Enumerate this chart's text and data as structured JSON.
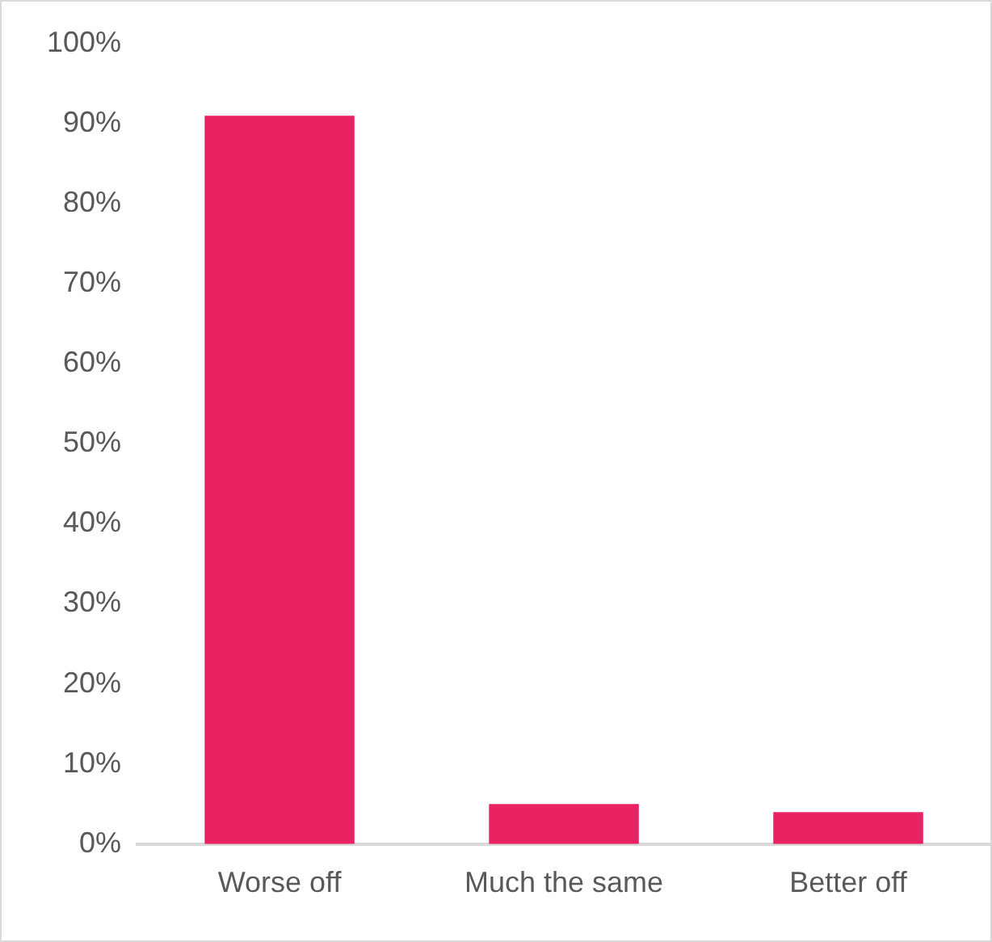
{
  "chart_data": {
    "type": "bar",
    "categories": [
      "Worse off",
      "Much the same",
      "Better off"
    ],
    "values": [
      91,
      5,
      4
    ],
    "color": "#e92262",
    "ylim": [
      0,
      100
    ],
    "yticks": [
      {
        "value": 0,
        "label": "0%"
      },
      {
        "value": 10,
        "label": "10%"
      },
      {
        "value": 20,
        "label": "20%"
      },
      {
        "value": 30,
        "label": "30%"
      },
      {
        "value": 40,
        "label": "40%"
      },
      {
        "value": 50,
        "label": "50%"
      },
      {
        "value": 60,
        "label": "60%"
      },
      {
        "value": 70,
        "label": "70%"
      },
      {
        "value": 80,
        "label": "80%"
      },
      {
        "value": 90,
        "label": "90%"
      },
      {
        "value": 100,
        "label": "100%"
      }
    ],
    "grid": false,
    "legend": false
  }
}
